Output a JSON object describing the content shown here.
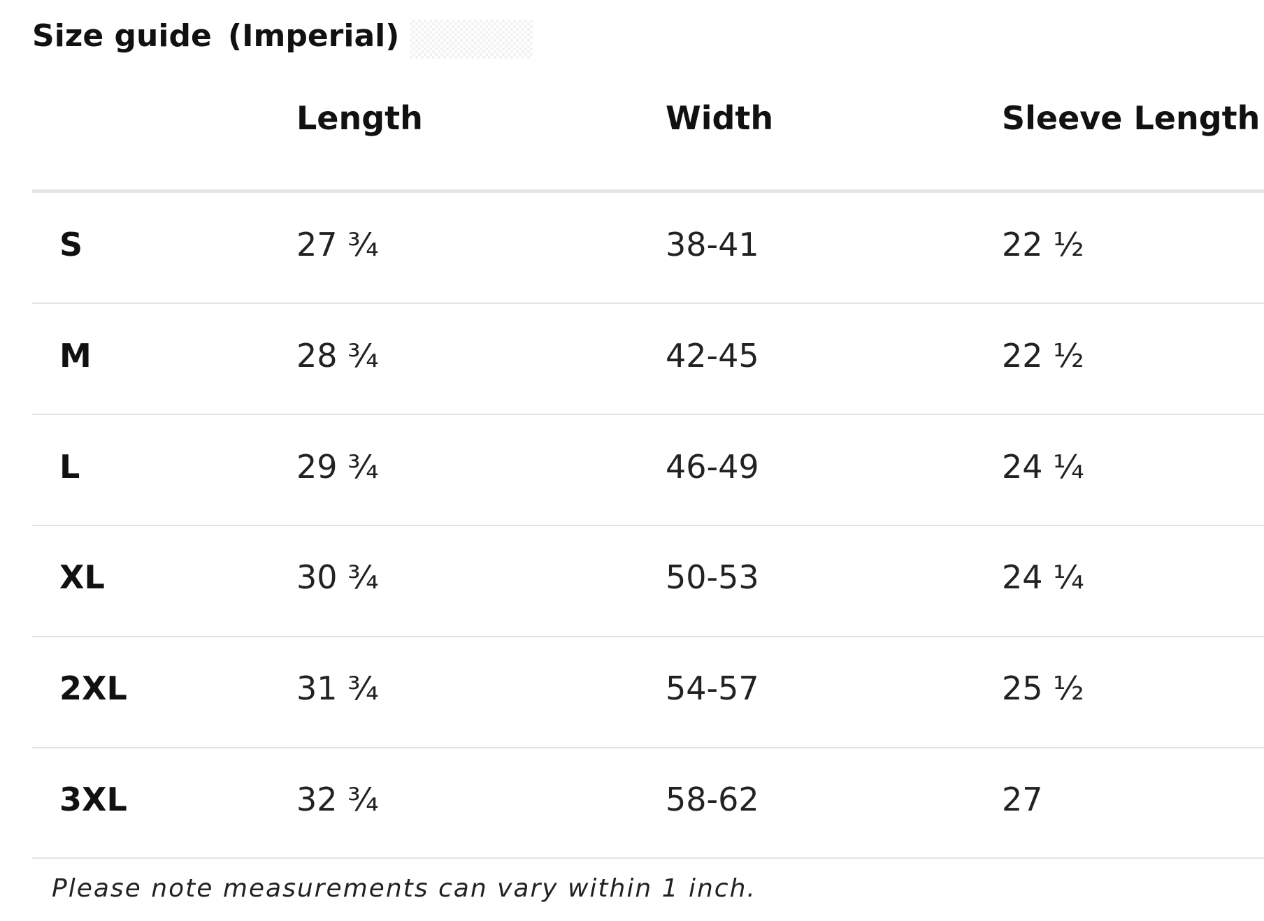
{
  "header": {
    "title": "Size guide",
    "subtitle": "(Imperial)"
  },
  "table": {
    "columns": [
      "Length",
      "Width",
      "Sleeve Length"
    ],
    "rows": [
      [
        "S",
        "27 ¾",
        "38-41",
        "22 ½"
      ],
      [
        "M",
        "28 ¾",
        "42-45",
        "22 ½"
      ],
      [
        "L",
        "29 ¾",
        "46-49",
        "24 ¼"
      ],
      [
        "XL",
        "30 ¾",
        "50-53",
        "24 ¼"
      ],
      [
        "2XL",
        "31 ¾",
        "54-57",
        "25 ½"
      ],
      [
        "3XL",
        "32 ¾",
        "58-62",
        "27"
      ]
    ]
  },
  "note": "Please note measurements can vary within 1 inch."
}
